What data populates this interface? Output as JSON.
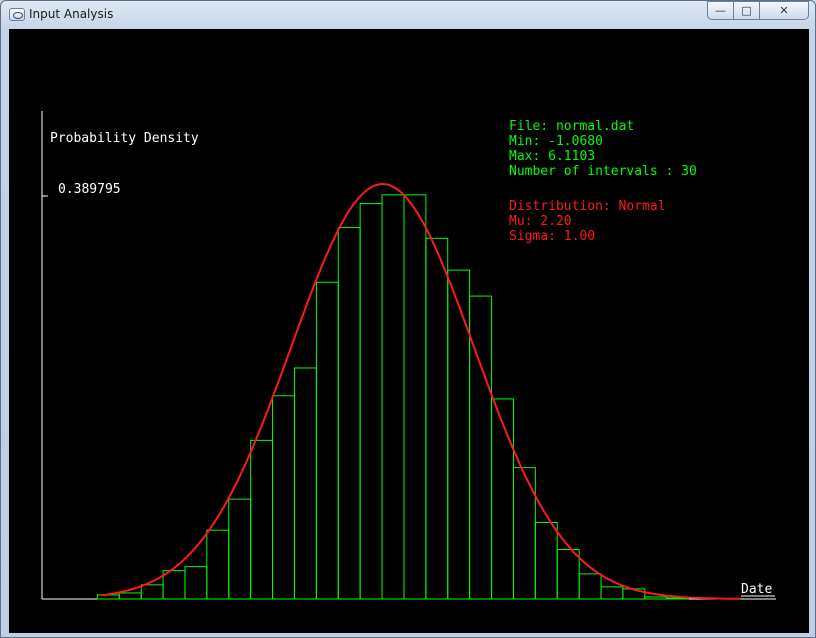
{
  "window": {
    "title": "Input Analysis"
  },
  "controls": {
    "minimize": "—",
    "maximize": "□",
    "close": "✕"
  },
  "info": {
    "file": "File: normal.dat",
    "min": "Min: -1.0680",
    "max": "Max: 6.1103",
    "intervals": "Number of intervals : 30",
    "distribution": "Distribution: Normal",
    "mu": "Mu: 2.20",
    "sigma": "Sigma: 1.00"
  },
  "colors": {
    "histogram": "#00ff00",
    "curve": "#ff1a1a",
    "axis": "#ffffff",
    "background": "#000000"
  },
  "chart_data": {
    "type": "bar",
    "ylabel": "Probability Density",
    "xlabel": "Date",
    "ymax_label": "0.389795",
    "xlim": [
      -1.068,
      6.1103
    ],
    "ylim": [
      0,
      0.389795
    ],
    "intervals": 30,
    "bins": [
      {
        "x0": -1.068,
        "x1": -0.829,
        "y": 0.0
      },
      {
        "x0": -0.829,
        "x1": -0.59,
        "y": 0.0038
      },
      {
        "x0": -0.59,
        "x1": -0.35,
        "y": 0.0057
      },
      {
        "x0": -0.35,
        "x1": -0.111,
        "y": 0.0133
      },
      {
        "x0": -0.111,
        "x1": 0.128,
        "y": 0.0266
      },
      {
        "x0": 0.128,
        "x1": 0.367,
        "y": 0.0304
      },
      {
        "x0": 0.367,
        "x1": 0.607,
        "y": 0.0646
      },
      {
        "x0": 0.607,
        "x1": 0.846,
        "y": 0.0938
      },
      {
        "x0": 0.846,
        "x1": 1.085,
        "y": 0.149
      },
      {
        "x0": 1.085,
        "x1": 1.324,
        "y": 0.1909
      },
      {
        "x0": 1.324,
        "x1": 1.564,
        "y": 0.217
      },
      {
        "x0": 1.564,
        "x1": 1.803,
        "y": 0.2975
      },
      {
        "x0": 1.803,
        "x1": 2.042,
        "y": 0.3489
      },
      {
        "x0": 2.042,
        "x1": 2.281,
        "y": 0.3714
      },
      {
        "x0": 2.281,
        "x1": 2.521,
        "y": 0.3796
      },
      {
        "x0": 2.521,
        "x1": 2.76,
        "y": 0.3796
      },
      {
        "x0": 2.76,
        "x1": 2.999,
        "y": 0.3388
      },
      {
        "x0": 2.999,
        "x1": 3.238,
        "y": 0.3089
      },
      {
        "x0": 3.238,
        "x1": 3.478,
        "y": 0.2845
      },
      {
        "x0": 3.478,
        "x1": 3.717,
        "y": 0.1879
      },
      {
        "x0": 3.717,
        "x1": 3.956,
        "y": 0.1234
      },
      {
        "x0": 3.956,
        "x1": 4.195,
        "y": 0.0719
      },
      {
        "x0": 4.195,
        "x1": 4.435,
        "y": 0.0465
      },
      {
        "x0": 4.435,
        "x1": 4.674,
        "y": 0.0236
      },
      {
        "x0": 4.674,
        "x1": 4.913,
        "y": 0.0114
      },
      {
        "x0": 4.913,
        "x1": 5.152,
        "y": 0.0095
      },
      {
        "x0": 5.152,
        "x1": 5.392,
        "y": 0.0019
      },
      {
        "x0": 5.392,
        "x1": 5.631,
        "y": 0.001
      },
      {
        "x0": 5.631,
        "x1": 5.87,
        "y": 0.0
      },
      {
        "x0": 5.87,
        "x1": 6.11,
        "y": 0.0
      }
    ],
    "curve": {
      "distribution": "Normal",
      "mu": 2.2,
      "sigma": 1.0
    }
  }
}
